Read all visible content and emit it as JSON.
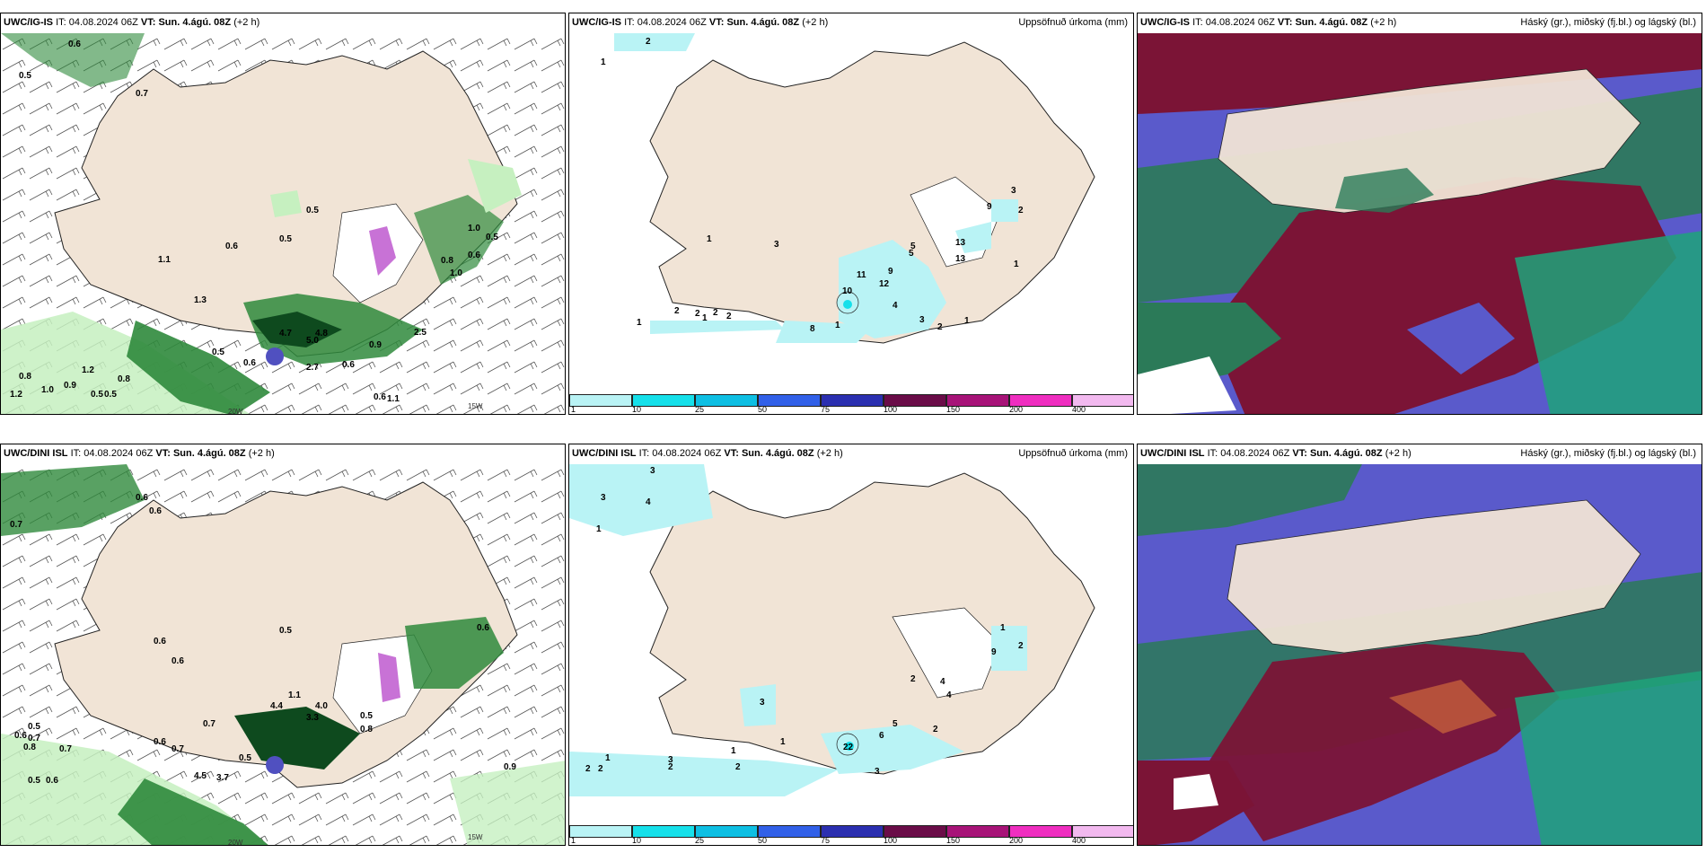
{
  "colors": {
    "land": "#f1e4d6",
    "sea": "#ffffff",
    "precip_light": "#c6f0c0",
    "precip_mid": "#2f8a3c",
    "precip_dark": "#0e4a1e",
    "accum_1": "#b9f3f5",
    "accum_10": "#16e0ea",
    "cloud_high": "#5a5acb",
    "cloud_mid": "#2b7a58",
    "cloud_low": "#7b1436"
  },
  "panels": [
    {
      "id": "p1",
      "model": "UWC/IG-IS",
      "it_label": "IT:",
      "it_value": "04.08.2024 06Z",
      "vt_label": "VT:",
      "vt_value": "Sun. 4.ágú. 08Z",
      "lead": "(+2 h)",
      "right_title": "",
      "labels": [
        "0.6",
        "0.5",
        "0.7",
        "0.5",
        "0.6",
        "0.5",
        "1.0",
        "1.3",
        "1.1",
        "0.6",
        "0.8",
        "1.0",
        "4.7",
        "4.8",
        "5.0",
        "0.5",
        "2.5",
        "0.6",
        "2.7",
        "0.6",
        "1.2",
        "0.9",
        "0.8",
        "0.5",
        "1.2",
        "1.0",
        "0.8",
        "0.5",
        "0.9",
        "1.1",
        "0.6",
        "0.5"
      ],
      "ticks": [
        "20W",
        "15W"
      ]
    },
    {
      "id": "p2",
      "model": "UWC/IG-IS",
      "it_label": "IT:",
      "it_value": "04.08.2024 06Z",
      "vt_label": "VT:",
      "vt_value": "Sun. 4.ágú. 08Z",
      "lead": "(+2 h)",
      "right_title": "Uppsöfnuð úrkoma (mm)",
      "labels": [
        "2",
        "1",
        "1",
        "3",
        "1",
        "11",
        "9",
        "12",
        "10",
        "4",
        "3",
        "1",
        "2",
        "2",
        "2",
        "2",
        "1",
        "8",
        "1",
        "2",
        "5",
        "5",
        "13",
        "13",
        "9",
        "3",
        "2",
        "1"
      ],
      "colorbar": [
        "1",
        "10",
        "25",
        "50",
        "75",
        "100",
        "150",
        "200",
        "400"
      ]
    },
    {
      "id": "p3",
      "model": "UWC/IG-IS",
      "it_label": "IT:",
      "it_value": "04.08.2024 06Z",
      "vt_label": "VT:",
      "vt_value": "Sun. 4.ágú. 08Z",
      "lead": "(+2 h)",
      "right_title": "Háský (gr.), miðský (fj.bl.) og lágský (bl.)"
    },
    {
      "id": "p4",
      "model": "UWC/DINI ISL",
      "it_label": "IT:",
      "it_value": "04.08.2024 06Z",
      "vt_label": "VT:",
      "vt_value": "Sun. 4.ágú. 08Z",
      "lead": "(+2 h)",
      "right_title": "",
      "labels": [
        "0.7",
        "0.6",
        "0.6",
        "0.6",
        "0.5",
        "0.6",
        "0.6",
        "1.1",
        "4.4",
        "4.0",
        "3.3",
        "0.5",
        "0.6",
        "0.8",
        "0.7",
        "0.6",
        "0.7",
        "0.5",
        "0.6",
        "0.8",
        "0.7",
        "0.5",
        "4.5",
        "3.7",
        "0.9",
        "0.5",
        "0.6"
      ],
      "ticks": [
        "20W",
        "15W"
      ]
    },
    {
      "id": "p5",
      "model": "UWC/DINI ISL",
      "it_label": "IT:",
      "it_value": "04.08.2024 06Z",
      "vt_label": "VT:",
      "vt_value": "Sun. 4.ágú. 08Z",
      "lead": "(+2 h)",
      "right_title": "Uppsöfnuð úrkoma (mm)",
      "labels": [
        "3",
        "3",
        "4",
        "1",
        "3",
        "2",
        "4",
        "4",
        "9",
        "1",
        "2",
        "22",
        "5",
        "6",
        "2",
        "3",
        "1",
        "1",
        "3",
        "2",
        "2",
        "2",
        "2",
        "1"
      ],
      "colorbar": [
        "1",
        "10",
        "25",
        "50",
        "75",
        "100",
        "150",
        "200",
        "400"
      ]
    },
    {
      "id": "p6",
      "model": "UWC/DINI ISL",
      "it_label": "IT:",
      "it_value": "04.08.2024 06Z",
      "vt_label": "VT:",
      "vt_value": "Sun. 4.ágú. 08Z",
      "lead": "(+2 h)",
      "right_title": "Háský (gr.), miðský (fj.bl.) og lágský (bl.)"
    }
  ]
}
